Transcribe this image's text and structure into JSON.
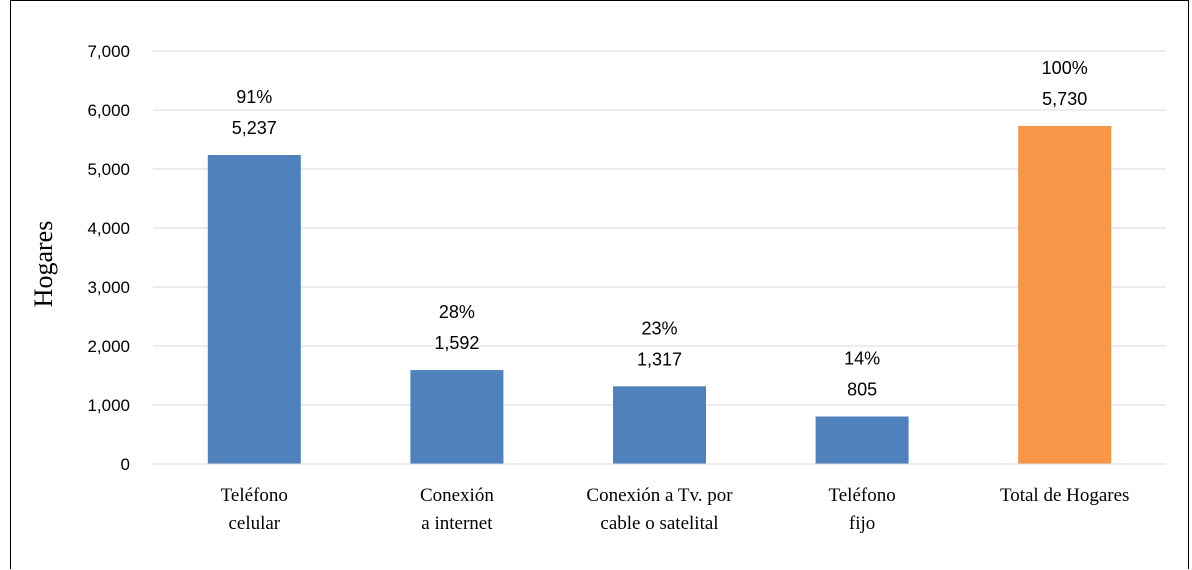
{
  "chart_data": {
    "type": "bar",
    "ylabel": "Hogares",
    "xlabel": "",
    "title": "",
    "ylim": [
      0,
      7000
    ],
    "yticks": [
      0,
      1000,
      2000,
      3000,
      4000,
      5000,
      6000,
      7000
    ],
    "ytick_labels": [
      "0",
      "1,000",
      "2,000",
      "3,000",
      "4,000",
      "5,000",
      "6,000",
      "7,000"
    ],
    "grid": true,
    "categories": [
      [
        "Teléfono",
        "celular"
      ],
      [
        "Conexión",
        "a internet"
      ],
      [
        "Conexión a Tv. por",
        "cable o satelital"
      ],
      [
        "Teléfono",
        "fijo"
      ],
      [
        "Total de Hogares"
      ]
    ],
    "values": [
      5237,
      1592,
      1317,
      805,
      5730
    ],
    "value_labels": [
      "5,237",
      "1,592",
      "1,317",
      "805",
      "5,730"
    ],
    "percent_labels": [
      "91%",
      "28%",
      "23%",
      "14%",
      "100%"
    ],
    "colors": [
      "#4f81bd",
      "#4f81bd",
      "#4f81bd",
      "#4f81bd",
      "#f79646"
    ]
  }
}
